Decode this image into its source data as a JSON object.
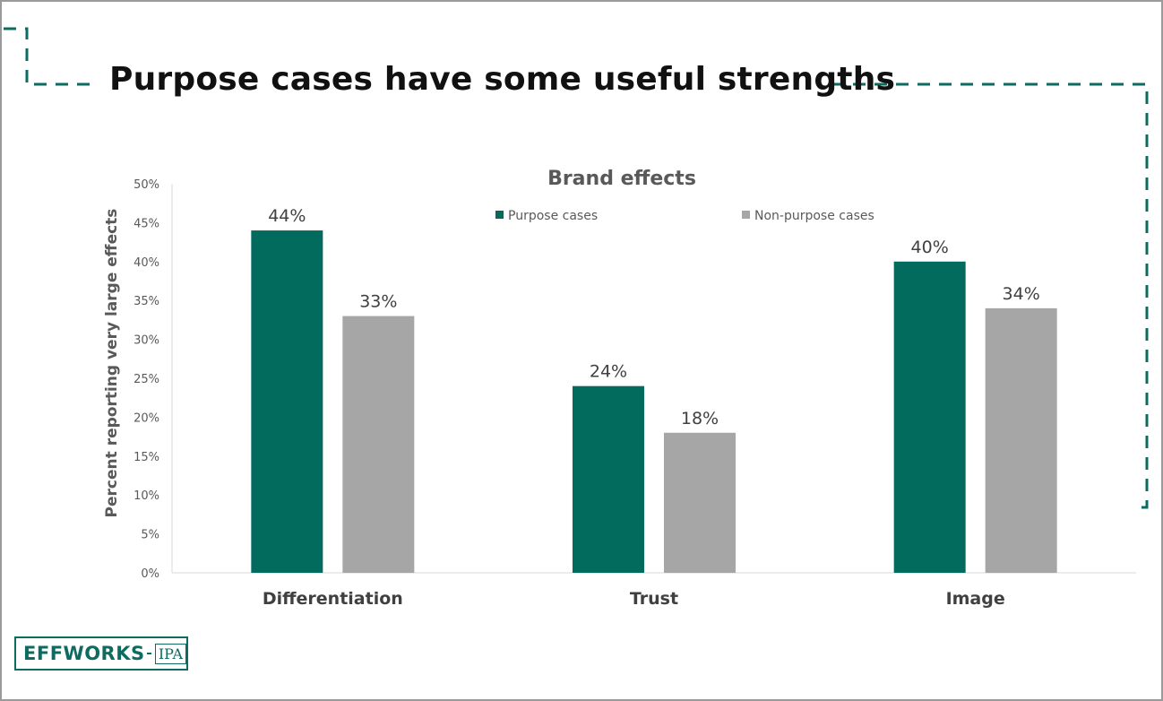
{
  "slide": {
    "title": "Purpose cases have some useful strengths"
  },
  "colors": {
    "purpose": "#036a5e",
    "non_purpose": "#a6a6a6",
    "accent": "#0e6b5f"
  },
  "logo": {
    "main": "EFFWORKS",
    "ipa": "IPA"
  },
  "chart_data": {
    "type": "bar",
    "title": "Brand effects",
    "xlabel": "",
    "ylabel": "Percent reporting very large effects",
    "categories": [
      "Differentiation",
      "Trust",
      "Image"
    ],
    "series": [
      {
        "name": "Purpose cases",
        "values": [
          44,
          24,
          40
        ],
        "labels": [
          "44%",
          "24%",
          "40%"
        ]
      },
      {
        "name": "Non-purpose cases",
        "values": [
          33,
          18,
          34
        ],
        "labels": [
          "33%",
          "18%",
          "34%"
        ]
      }
    ],
    "ylim": [
      0,
      50
    ],
    "yticks": [
      "0%",
      "5%",
      "10%",
      "15%",
      "20%",
      "25%",
      "30%",
      "35%",
      "40%",
      "45%",
      "50%"
    ],
    "grid": false,
    "legend_position": "top"
  }
}
